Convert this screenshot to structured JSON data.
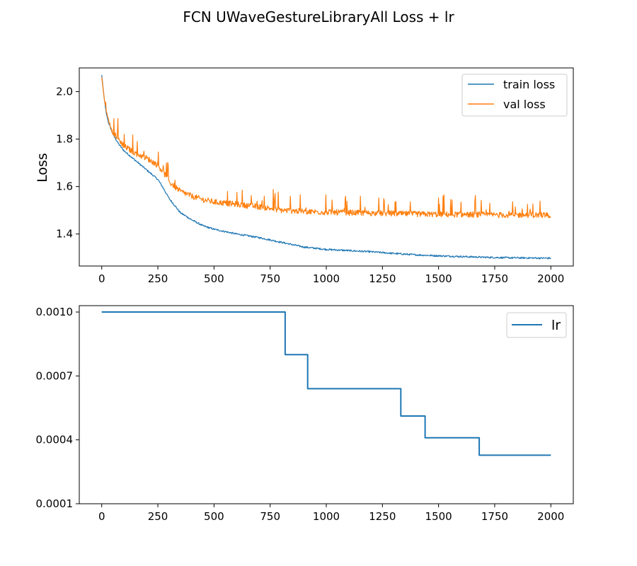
{
  "suptitle": "FCN UWaveGestureLibraryAll Loss + lr",
  "colors": {
    "train": "#1f77b4",
    "val": "#ff7f0e",
    "lr": "#1f77b4",
    "axis": "#000000"
  },
  "chart_data": [
    {
      "type": "line",
      "ylabel": "Loss",
      "xlabel": "",
      "xlim": [
        -100,
        2100
      ],
      "ylim": [
        1.265,
        2.1
      ],
      "xticks": [
        0,
        250,
        500,
        750,
        1000,
        1250,
        1500,
        1750,
        2000
      ],
      "xtick_labels": [
        "0",
        "250",
        "500",
        "750",
        "1000",
        "1250",
        "1500",
        "1750",
        "2000"
      ],
      "yticks": [
        1.4,
        1.6,
        1.8,
        2.0
      ],
      "ytick_labels": [
        "1.4",
        "1.6",
        "1.8",
        "2.0"
      ],
      "legend": "top-right",
      "grid": false,
      "series": [
        {
          "name": "train loss",
          "x": [
            0,
            10,
            20,
            30,
            50,
            75,
            100,
            150,
            200,
            250,
            270,
            300,
            350,
            400,
            450,
            500,
            600,
            700,
            750,
            800,
            850,
            900,
            1000,
            1100,
            1200,
            1300,
            1400,
            1500,
            1600,
            1700,
            1800,
            1900,
            2000
          ],
          "y": [
            2.07,
            1.98,
            1.91,
            1.87,
            1.82,
            1.78,
            1.75,
            1.71,
            1.67,
            1.63,
            1.6,
            1.55,
            1.49,
            1.46,
            1.435,
            1.42,
            1.4,
            1.385,
            1.375,
            1.365,
            1.355,
            1.345,
            1.335,
            1.33,
            1.325,
            1.318,
            1.312,
            1.308,
            1.305,
            1.302,
            1.3,
            1.299,
            1.298
          ],
          "noise": 0.006
        },
        {
          "name": "val loss",
          "x": [
            0,
            10,
            20,
            30,
            50,
            75,
            100,
            150,
            200,
            250,
            275,
            300,
            350,
            400,
            450,
            500,
            600,
            700,
            750,
            800,
            850,
            900,
            1000,
            1100,
            1200,
            1300,
            1400,
            1500,
            1600,
            1700,
            1800,
            1900,
            2000
          ],
          "y": [
            2.06,
            1.98,
            1.92,
            1.88,
            1.83,
            1.8,
            1.77,
            1.74,
            1.72,
            1.69,
            1.66,
            1.62,
            1.58,
            1.56,
            1.545,
            1.535,
            1.525,
            1.515,
            1.508,
            1.5,
            1.498,
            1.495,
            1.492,
            1.49,
            1.488,
            1.486,
            1.484,
            1.483,
            1.482,
            1.481,
            1.48,
            1.48,
            1.48
          ],
          "noise": 0.02
        }
      ]
    },
    {
      "type": "line",
      "ylabel": "",
      "xlabel": "",
      "xlim": [
        -100,
        2100
      ],
      "ylim": [
        0.0001,
        0.00103
      ],
      "xticks": [
        0,
        250,
        500,
        750,
        1000,
        1250,
        1500,
        1750,
        2000
      ],
      "xtick_labels": [
        "0",
        "250",
        "500",
        "750",
        "1000",
        "1250",
        "1500",
        "1750",
        "2000"
      ],
      "yticks": [
        0.0001,
        0.0004,
        0.0007,
        0.001
      ],
      "ytick_labels": [
        "0.0001",
        "0.0004",
        "0.0007",
        "0.0010"
      ],
      "legend": "top-right",
      "grid": false,
      "series": [
        {
          "name": "lr",
          "x": [
            0,
            817,
            817,
            917,
            917,
            1332,
            1332,
            1440,
            1440,
            1681,
            1681,
            2000
          ],
          "y": [
            0.001,
            0.001,
            0.0008,
            0.0008,
            0.00064,
            0.00064,
            0.000512,
            0.000512,
            0.00041,
            0.00041,
            0.000328,
            0.000328
          ]
        }
      ]
    }
  ]
}
